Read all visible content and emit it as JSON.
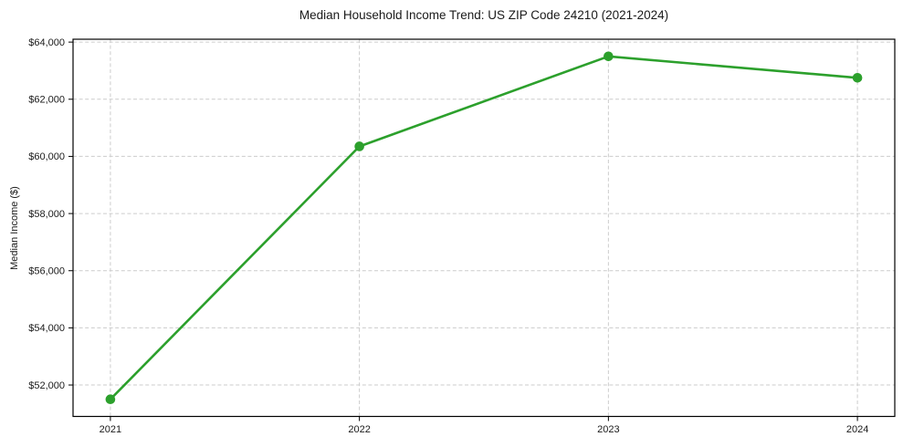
{
  "figure": {
    "background": "#ffffff"
  },
  "chart_data": {
    "type": "line",
    "title": "Median Household Income Trend: US ZIP Code 24210 (2021-2024)",
    "xlabel": "",
    "ylabel": "Median Income ($)",
    "x": [
      2021,
      2022,
      2023,
      2024
    ],
    "categories": [
      "2021",
      "2022",
      "2023",
      "2024"
    ],
    "series": [
      {
        "name": "Median Household Income",
        "values": [
          51500,
          60350,
          63500,
          62750
        ],
        "color": "#2ca02c"
      }
    ],
    "xlim": [
      2020.85,
      2024.15
    ],
    "ylim": [
      50900,
      64100
    ],
    "yticks": [
      52000,
      54000,
      56000,
      58000,
      60000,
      62000,
      64000
    ],
    "ytick_labels": [
      "$52,000",
      "$54,000",
      "$56,000",
      "$58,000",
      "$60,000",
      "$62,000",
      "$64,000"
    ],
    "grid": true,
    "legend_position": "none",
    "colors": {
      "grid": "#cccccc",
      "axis": "#000000",
      "text": "#1a1a1a"
    }
  }
}
